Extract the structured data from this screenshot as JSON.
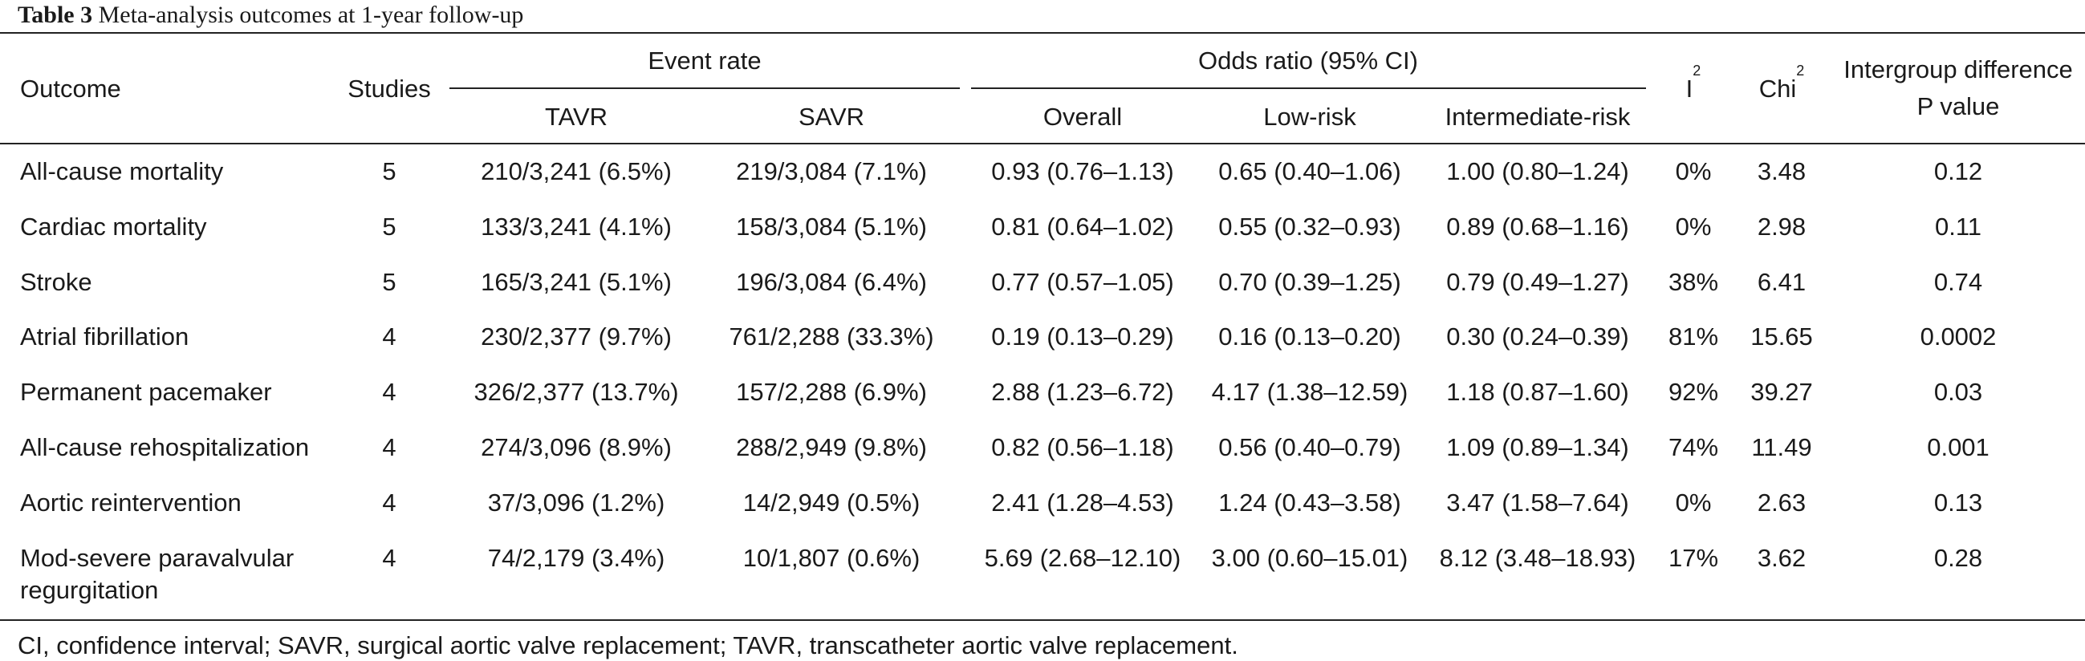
{
  "caption": {
    "label": "Table 3",
    "text": "Meta-analysis outcomes at 1-year follow-up"
  },
  "headers": {
    "outcome": "Outcome",
    "studies": "Studies",
    "event_rate": "Event rate",
    "tavr": "TAVR",
    "savr": "SAVR",
    "odds_ratio": "Odds ratio (95% CI)",
    "overall": "Overall",
    "low_risk": "Low-risk",
    "intermediate_risk": "Intermediate-risk",
    "i2_base": "I",
    "i2_sup": "2",
    "chi2_base": "Chi",
    "chi2_sup": "2",
    "intergroup_line1": "Intergroup difference",
    "intergroup_line2": "P value"
  },
  "rows": [
    {
      "outcome": "All-cause mortality",
      "studies": "5",
      "tavr": "210/3,241 (6.5%)",
      "savr": "219/3,084 (7.1%)",
      "overall": "0.93 (0.76–1.13)",
      "low": "0.65 (0.40–1.06)",
      "inter": "1.00 (0.80–1.24)",
      "i2": "0%",
      "chi2": "3.48",
      "p": "0.12"
    },
    {
      "outcome": "Cardiac mortality",
      "studies": "5",
      "tavr": "133/3,241 (4.1%)",
      "savr": "158/3,084 (5.1%)",
      "overall": "0.81 (0.64–1.02)",
      "low": "0.55 (0.32–0.93)",
      "inter": "0.89 (0.68–1.16)",
      "i2": "0%",
      "chi2": "2.98",
      "p": "0.11"
    },
    {
      "outcome": "Stroke",
      "studies": "5",
      "tavr": "165/3,241 (5.1%)",
      "savr": "196/3,084 (6.4%)",
      "overall": "0.77 (0.57–1.05)",
      "low": "0.70 (0.39–1.25)",
      "inter": "0.79 (0.49–1.27)",
      "i2": "38%",
      "chi2": "6.41",
      "p": "0.74"
    },
    {
      "outcome": "Atrial fibrillation",
      "studies": "4",
      "tavr": "230/2,377 (9.7%)",
      "savr": "761/2,288 (33.3%)",
      "overall": "0.19 (0.13–0.29)",
      "low": "0.16 (0.13–0.20)",
      "inter": "0.30 (0.24–0.39)",
      "i2": "81%",
      "chi2": "15.65",
      "p": "0.0002"
    },
    {
      "outcome": "Permanent pacemaker",
      "studies": "4",
      "tavr": "326/2,377 (13.7%)",
      "savr": "157/2,288 (6.9%)",
      "overall": "2.88 (1.23–6.72)",
      "low": "4.17 (1.38–12.59)",
      "inter": "1.18 (0.87–1.60)",
      "i2": "92%",
      "chi2": "39.27",
      "p": "0.03"
    },
    {
      "outcome": "All-cause rehospitalization",
      "studies": "4",
      "tavr": "274/3,096 (8.9%)",
      "savr": "288/2,949 (9.8%)",
      "overall": "0.82 (0.56–1.18)",
      "low": "0.56 (0.40–0.79)",
      "inter": "1.09 (0.89–1.34)",
      "i2": "74%",
      "chi2": "11.49",
      "p": "0.001"
    },
    {
      "outcome": "Aortic reintervention",
      "studies": "4",
      "tavr": "37/3,096 (1.2%)",
      "savr": "14/2,949 (0.5%)",
      "overall": "2.41 (1.28–4.53)",
      "low": "1.24 (0.43–3.58)",
      "inter": "3.47 (1.58–7.64)",
      "i2": "0%",
      "chi2": "2.63",
      "p": "0.13"
    },
    {
      "outcome": "Mod-severe paravalvular",
      "outcome2": "regurgitation",
      "studies": "4",
      "tavr": "74/2,179 (3.4%)",
      "savr": "10/1,807 (0.6%)",
      "overall": "5.69 (2.68–12.10)",
      "low": "3.00 (0.60–15.01)",
      "inter": "8.12 (3.48–18.93)",
      "i2": "17%",
      "chi2": "3.62",
      "p": "0.28"
    }
  ],
  "footnote": "CI, confidence interval; SAVR, surgical aortic valve replacement; TAVR, transcatheter aortic valve replacement."
}
